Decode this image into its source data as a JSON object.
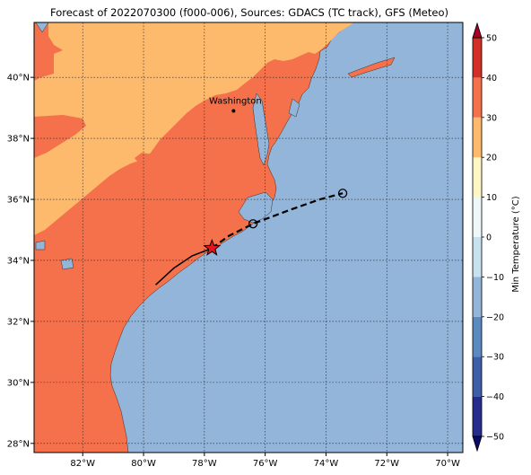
{
  "title": "Forecast of 2022070300 (f000-006), Sources: GDACS (TC track), GFS (Meteo)",
  "map": {
    "lon_range": [
      -83.6,
      -69.5
    ],
    "lat_range": [
      27.7,
      41.8
    ],
    "lon_ticks": [
      -82,
      -80,
      -78,
      -76,
      -74,
      -72,
      -70
    ],
    "lon_tick_labels": [
      "82°W",
      "80°W",
      "78°W",
      "76°W",
      "74°W",
      "72°W",
      "70°W"
    ],
    "lat_ticks": [
      28,
      30,
      32,
      34,
      36,
      38,
      40
    ],
    "lat_tick_labels": [
      "28°N",
      "30°N",
      "32°N",
      "34°N",
      "36°N",
      "38°N",
      "40°N"
    ],
    "gridlines": true,
    "colors": {
      "ocean": "#92b5d9",
      "band_20_30": "#f4714b",
      "band_10_20": "#fdb96c"
    }
  },
  "cities": [
    {
      "name": "Washington",
      "lon": -77.04,
      "lat": 38.9
    }
  ],
  "track": {
    "observed": [
      [
        -79.6,
        33.2
      ],
      [
        -79.0,
        33.75
      ],
      [
        -78.4,
        34.15
      ],
      [
        -77.75,
        34.4
      ]
    ],
    "forecast": [
      [
        -77.75,
        34.4
      ],
      [
        -77.2,
        34.8
      ],
      [
        -76.4,
        35.2
      ],
      [
        -75.2,
        35.65
      ],
      [
        -74.2,
        36.0
      ],
      [
        -73.45,
        36.2
      ]
    ],
    "current_position": [
      -77.75,
      34.4
    ],
    "forecast_points": [
      [
        -76.4,
        35.2
      ],
      [
        -73.45,
        36.2
      ]
    ]
  },
  "colorbar": {
    "label": "Min Temperature (°C)",
    "ticks": [
      -50,
      -40,
      -30,
      -20,
      -10,
      0,
      10,
      20,
      30,
      40,
      50
    ],
    "tick_labels": [
      "−50",
      "−40",
      "−30",
      "−20",
      "−10",
      "0",
      "10",
      "20",
      "30",
      "40",
      "50"
    ],
    "colors": [
      "#262c8e",
      "#3e5fa8",
      "#5b8ac1",
      "#92b5d9",
      "#c8e1ee",
      "#eef8f9",
      "#fef6c4",
      "#fdb96c",
      "#f4714b",
      "#d22f27",
      "#a50026"
    ],
    "extend": "both"
  }
}
